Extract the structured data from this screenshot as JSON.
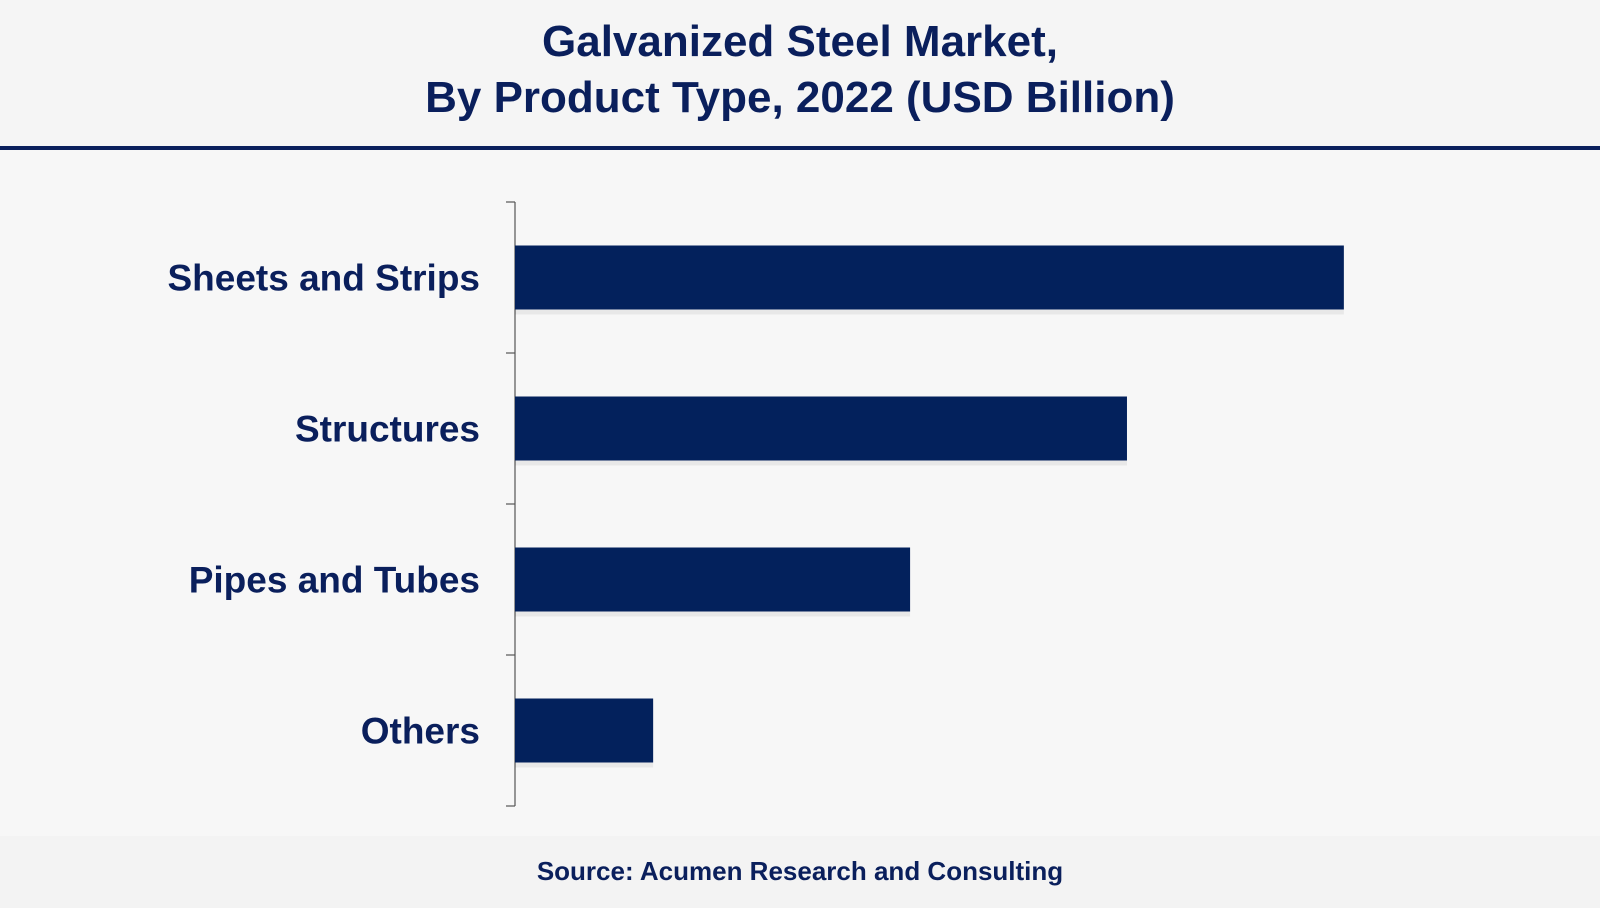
{
  "chart_data": {
    "type": "bar",
    "orientation": "horizontal",
    "title": "Galvanized Steel Market,",
    "subtitle": "By Product Type, 2022 (USD Billion)",
    "categories": [
      "Sheets and Strips",
      "Structures",
      "Pipes and Tubes",
      "Others"
    ],
    "values": [
      6.0,
      4.43,
      2.86,
      1.0
    ],
    "xlim": [
      0,
      7.0
    ],
    "grid": false,
    "source": "Source: Acumen Research and Consulting",
    "colors": {
      "bar": "#03215c",
      "text": "#0a1f5c",
      "axis": "#555555"
    }
  }
}
